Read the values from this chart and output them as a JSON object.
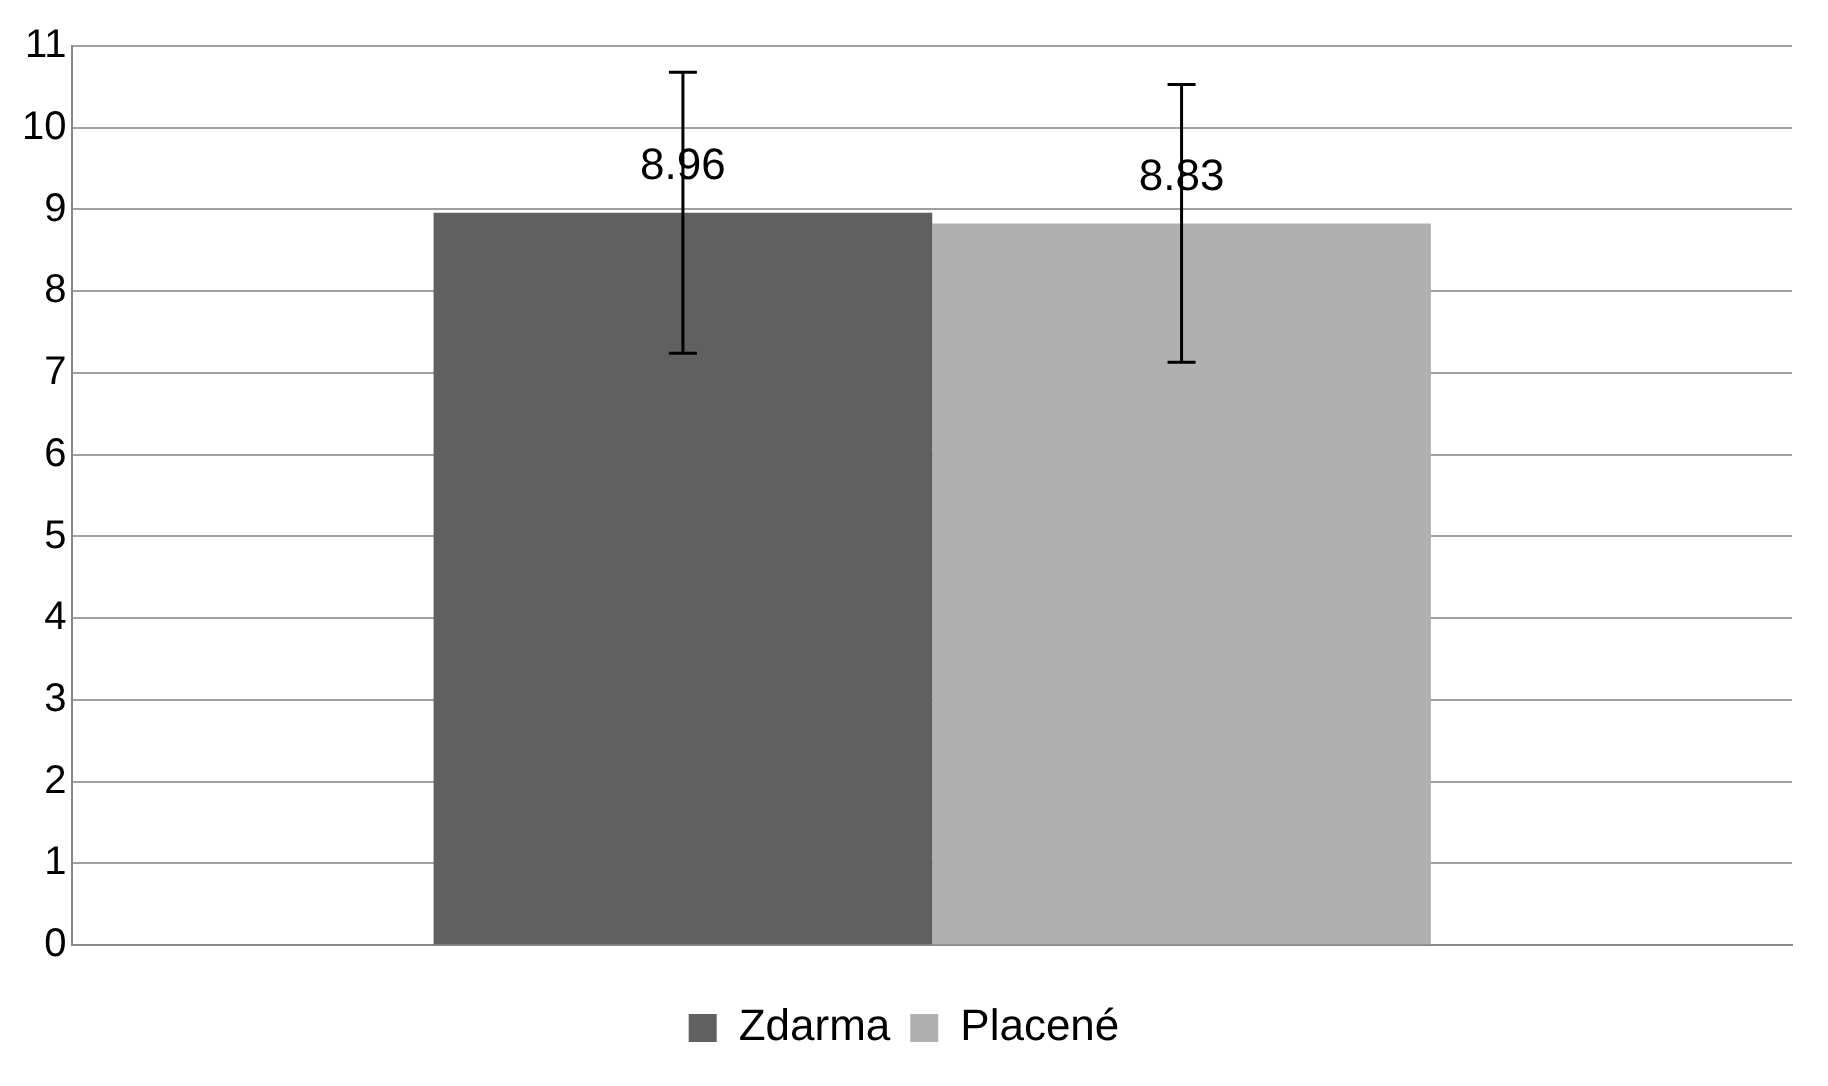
{
  "chart_data": {
    "type": "bar",
    "categories": [
      null
    ],
    "series": [
      {
        "name": "Zdarma",
        "color": "#606060",
        "values": [
          8.96
        ],
        "errors": [
          1.72
        ]
      },
      {
        "name": "Placené",
        "color": "#b0b0b0",
        "values": [
          8.83
        ],
        "errors": [
          1.7
        ]
      }
    ],
    "ylim": [
      0,
      11
    ],
    "yticks": [
      0,
      1,
      2,
      3,
      4,
      5,
      6,
      7,
      8,
      9,
      10,
      11
    ],
    "grid": "y",
    "legend": "bottom",
    "data_labels": true
  }
}
